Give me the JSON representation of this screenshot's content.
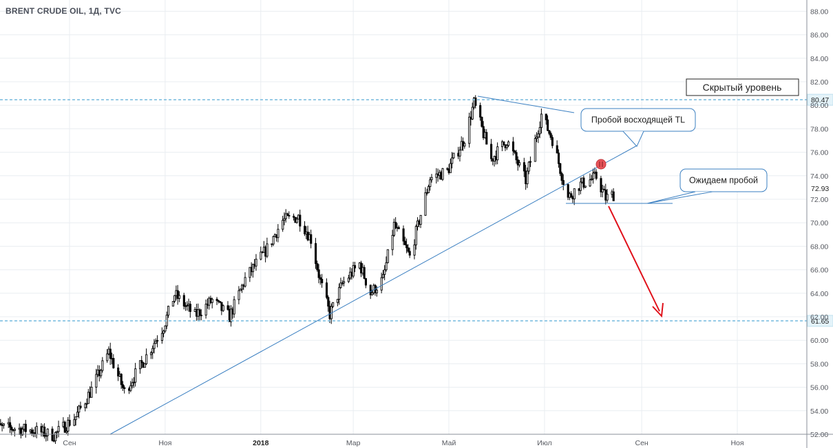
{
  "header": {
    "symbol_title": "BRENT CRUDE OIL, 1Д, TVC"
  },
  "chart_data": {
    "type": "candlestick",
    "title": "BRENT CRUDE OIL, 1Д, TVC",
    "y_range": [
      51.6,
      88.6
    ],
    "y_ticks": [
      "52.00",
      "54.00",
      "56.00",
      "58.00",
      "60.00",
      "62.00",
      "64.00",
      "66.00",
      "68.00",
      "70.00",
      "72.00",
      "74.00",
      "76.00",
      "78.00",
      "80.00",
      "82.00",
      "84.00",
      "86.00",
      "88.00"
    ],
    "x_ticks": [
      {
        "label": "Сен",
        "bold": false
      },
      {
        "label": "Ноя",
        "bold": false
      },
      {
        "label": "2018",
        "bold": true
      },
      {
        "label": "Мар",
        "bold": false
      },
      {
        "label": "Май",
        "bold": false
      },
      {
        "label": "Июл",
        "bold": false
      },
      {
        "label": "Сен",
        "bold": false
      },
      {
        "label": "Ноя",
        "bold": false
      }
    ],
    "grid": true,
    "close_path": [
      [
        "2017-07-12",
        52.6
      ],
      [
        "2017-07-28",
        52.5
      ],
      [
        "2017-08-10",
        52.3
      ],
      [
        "2017-08-22",
        51.9
      ],
      [
        "2017-09-05",
        53.5
      ],
      [
        "2017-09-15",
        55.8
      ],
      [
        "2017-09-26",
        59.0
      ],
      [
        "2017-10-06",
        55.6
      ],
      [
        "2017-10-18",
        58.2
      ],
      [
        "2017-10-31",
        61.2
      ],
      [
        "2017-11-07",
        63.9
      ],
      [
        "2017-11-20",
        62.1
      ],
      [
        "2017-12-01",
        63.4
      ],
      [
        "2017-12-12",
        62.0
      ],
      [
        "2017-12-22",
        65.2
      ],
      [
        "2018-01-05",
        67.8
      ],
      [
        "2018-01-15",
        70.2
      ],
      [
        "2018-01-25",
        70.5
      ],
      [
        "2018-02-02",
        68.6
      ],
      [
        "2018-02-08",
        65.0
      ],
      [
        "2018-02-14",
        62.2
      ],
      [
        "2018-02-22",
        64.8
      ],
      [
        "2018-03-05",
        66.5
      ],
      [
        "2018-03-12",
        64.0
      ],
      [
        "2018-03-20",
        65.2
      ],
      [
        "2018-03-27",
        69.8
      ],
      [
        "2018-04-06",
        67.1
      ],
      [
        "2018-04-19",
        73.8
      ],
      [
        "2018-04-30",
        74.4
      ],
      [
        "2018-05-11",
        77.2
      ],
      [
        "2018-05-17",
        80.2
      ],
      [
        "2018-05-28",
        75.4
      ],
      [
        "2018-06-07",
        77.0
      ],
      [
        "2018-06-19",
        73.6
      ],
      [
        "2018-06-29",
        79.2
      ],
      [
        "2018-07-06",
        77.1
      ],
      [
        "2018-07-16",
        72.1
      ],
      [
        "2018-07-23",
        73.2
      ],
      [
        "2018-08-03",
        73.9
      ],
      [
        "2018-08-09",
        72.1
      ],
      [
        "2018-08-14",
        72.4
      ]
    ],
    "annotations": {
      "hidden_level_label": "Скрытый уровень",
      "breakout_label": "Пробой восходящей TL",
      "expect_label": "Ожидаем пробой",
      "price_labels": [
        "80.47",
        "72.93",
        "61.65"
      ],
      "levels": [
        80.47,
        72.93,
        61.65
      ]
    },
    "colors": {
      "candle": "#000000",
      "trendline": "#3a7fc1",
      "level": "#7fbfe0",
      "arrow": "#e0101a",
      "marker": "#e8545a"
    }
  }
}
